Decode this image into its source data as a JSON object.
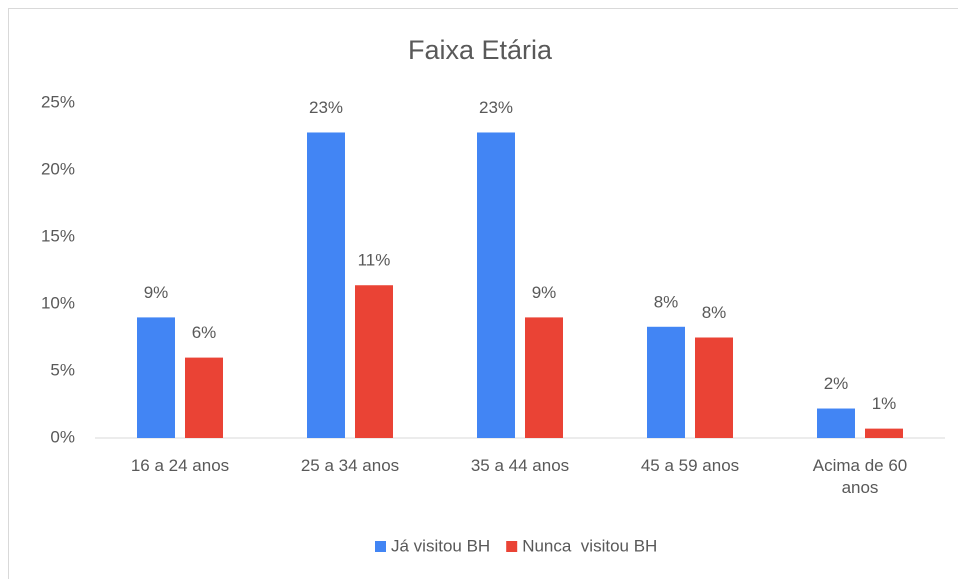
{
  "chart_data": {
    "type": "bar",
    "title": "Faixa Etária",
    "categories": [
      "16 a 24 anos",
      "25 a 34 anos",
      "35 a 44 anos",
      "45 a 59 anos",
      "Acima de 60 anos"
    ],
    "series": [
      {
        "name": "Já visitou BH",
        "color": "#4285f4",
        "values": [
          9,
          22.8,
          22.8,
          8.3,
          2.2
        ],
        "value_labels": [
          "9%",
          "23%",
          "23%",
          "8%",
          "2%"
        ]
      },
      {
        "name": "Nunca  visitou BH",
        "color": "#ea4335",
        "values": [
          6,
          11.4,
          9,
          7.5,
          0.7
        ],
        "value_labels": [
          "6%",
          "11%",
          "9%",
          "8%",
          "1%"
        ]
      }
    ],
    "ylim": [
      0,
      25
    ],
    "yticks": [
      {
        "value": 0,
        "label": "0%"
      },
      {
        "value": 5,
        "label": "5%"
      },
      {
        "value": 10,
        "label": "10%"
      },
      {
        "value": 15,
        "label": "15%"
      },
      {
        "value": 20,
        "label": "20%"
      },
      {
        "value": 25,
        "label": "25%"
      }
    ],
    "grid": false,
    "legend": "bottom"
  }
}
